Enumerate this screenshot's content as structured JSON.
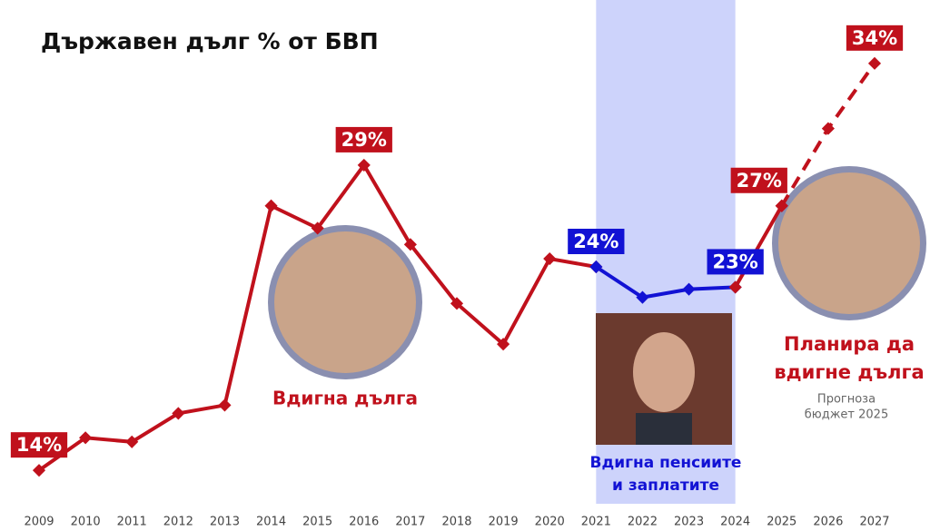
{
  "chart_data": {
    "type": "line",
    "title": "Държавен дълг % от БВП",
    "categories": [
      "2009",
      "2010",
      "2011",
      "2012",
      "2013",
      "2014",
      "2015",
      "2016",
      "2017",
      "2018",
      "2019",
      "2020",
      "2021",
      "2022",
      "2023",
      "2024",
      "2025",
      "2026",
      "2027"
    ],
    "ylim": [
      12,
      36
    ],
    "shaded_range": [
      "2021",
      "2024"
    ],
    "shaded_color": "#cdd3fb",
    "series": [
      {
        "color": "#c0111c",
        "line_style": "solid",
        "values": [
          14,
          15.6,
          15.4,
          16.8,
          17.2,
          27.0,
          25.9,
          29,
          25.1,
          22.2,
          20.2,
          24.4,
          24,
          null,
          null,
          null,
          null,
          null,
          null
        ],
        "value_labels": [
          "14%",
          null,
          null,
          null,
          null,
          null,
          null,
          "29%",
          null,
          null,
          null,
          null,
          null,
          null,
          null,
          null,
          null,
          null,
          null
        ]
      },
      {
        "color": "#1212d4",
        "line_style": "solid",
        "values": [
          null,
          null,
          null,
          null,
          null,
          null,
          null,
          null,
          null,
          null,
          null,
          null,
          24,
          22.5,
          22.9,
          23,
          null,
          null,
          null
        ],
        "value_labels": [
          null,
          null,
          null,
          null,
          null,
          null,
          null,
          null,
          null,
          null,
          null,
          null,
          "24%",
          null,
          null,
          "23%",
          null,
          null,
          null
        ]
      },
      {
        "color": "#c0111c",
        "line_style": "solid",
        "values": [
          null,
          null,
          null,
          null,
          null,
          null,
          null,
          null,
          null,
          null,
          null,
          null,
          null,
          null,
          null,
          23,
          27,
          null,
          null
        ],
        "value_labels": [
          null,
          null,
          null,
          null,
          null,
          null,
          null,
          null,
          null,
          null,
          null,
          null,
          null,
          null,
          null,
          null,
          "27%",
          null,
          null
        ]
      },
      {
        "color": "#c0111c",
        "line_style": "dashed",
        "values": [
          null,
          null,
          null,
          null,
          null,
          null,
          null,
          null,
          null,
          null,
          null,
          null,
          null,
          null,
          null,
          null,
          27,
          30.8,
          34
        ],
        "value_labels": [
          null,
          null,
          null,
          null,
          null,
          null,
          null,
          null,
          null,
          null,
          null,
          null,
          null,
          null,
          null,
          null,
          null,
          null,
          "34%"
        ]
      }
    ],
    "annotations": [
      {
        "lines": [
          "Вдигна дълга"
        ],
        "color": "#c0111c"
      },
      {
        "lines": [
          "Вдигна пенсиите",
          "и заплатите"
        ],
        "color": "#1212d4"
      },
      {
        "lines": [
          "Планира да",
          "вдигне дълга"
        ],
        "color": "#c0111c"
      },
      {
        "lines": [
          "Прогноза",
          "бюджет 2025"
        ],
        "color": "#666666"
      }
    ]
  }
}
